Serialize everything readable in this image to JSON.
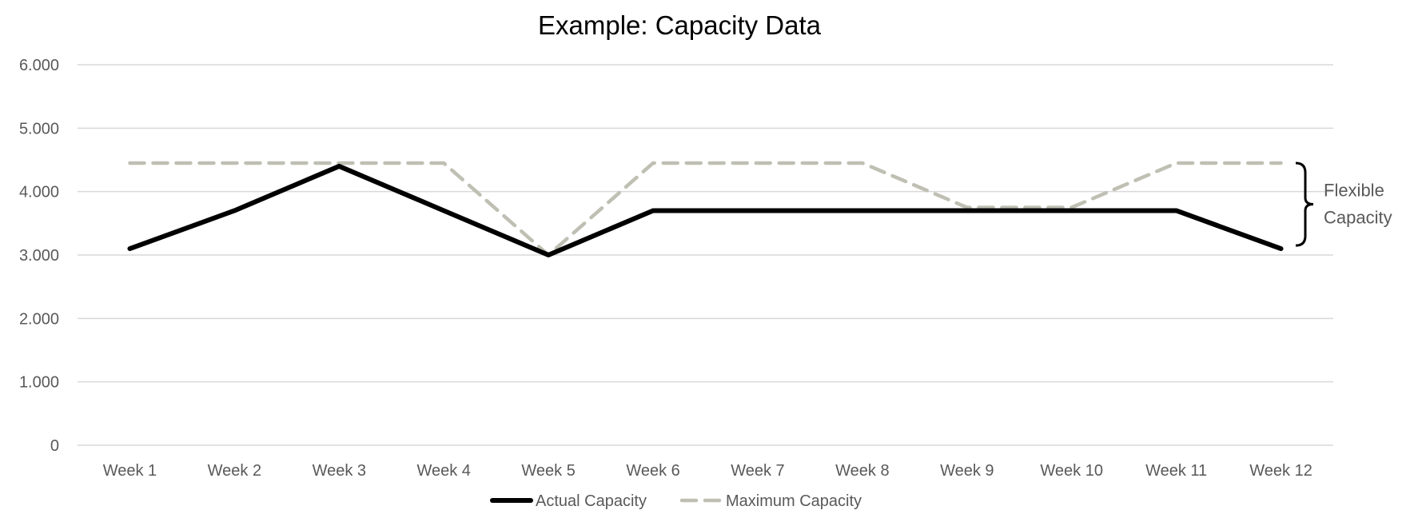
{
  "chart_data": {
    "type": "line",
    "title": "Example: Capacity Data",
    "xlabel": "",
    "ylabel": "",
    "categories": [
      "Week 1",
      "Week 2",
      "Week 3",
      "Week 4",
      "Week 5",
      "Week 6",
      "Week 7",
      "Week 8",
      "Week 9",
      "Week 10",
      "Week 11",
      "Week 12"
    ],
    "ylim": [
      0,
      6000
    ],
    "yticks": [
      0,
      1000,
      2000,
      3000,
      4000,
      5000,
      6000
    ],
    "ytick_labels": [
      "0",
      "1.000",
      "2.000",
      "3.000",
      "4.000",
      "5.000",
      "6.000"
    ],
    "grid": true,
    "legend_position": "bottom",
    "series": [
      {
        "name": "Actual Capacity",
        "color": "#000000",
        "style": "solid",
        "values": [
          3100,
          3700,
          4400,
          3700,
          3000,
          3700,
          3700,
          3700,
          3700,
          3700,
          3700,
          3100
        ]
      },
      {
        "name": "Maximum Capacity",
        "color": "#bfbfb3",
        "style": "dashed",
        "values": [
          4450,
          4450,
          4450,
          4450,
          3000,
          4450,
          4450,
          4450,
          3750,
          3750,
          4450,
          4450
        ]
      }
    ],
    "annotations": [
      {
        "text_line1": "Flexible",
        "text_line2": "Capacity",
        "from": 3150,
        "to": 4450
      }
    ]
  }
}
